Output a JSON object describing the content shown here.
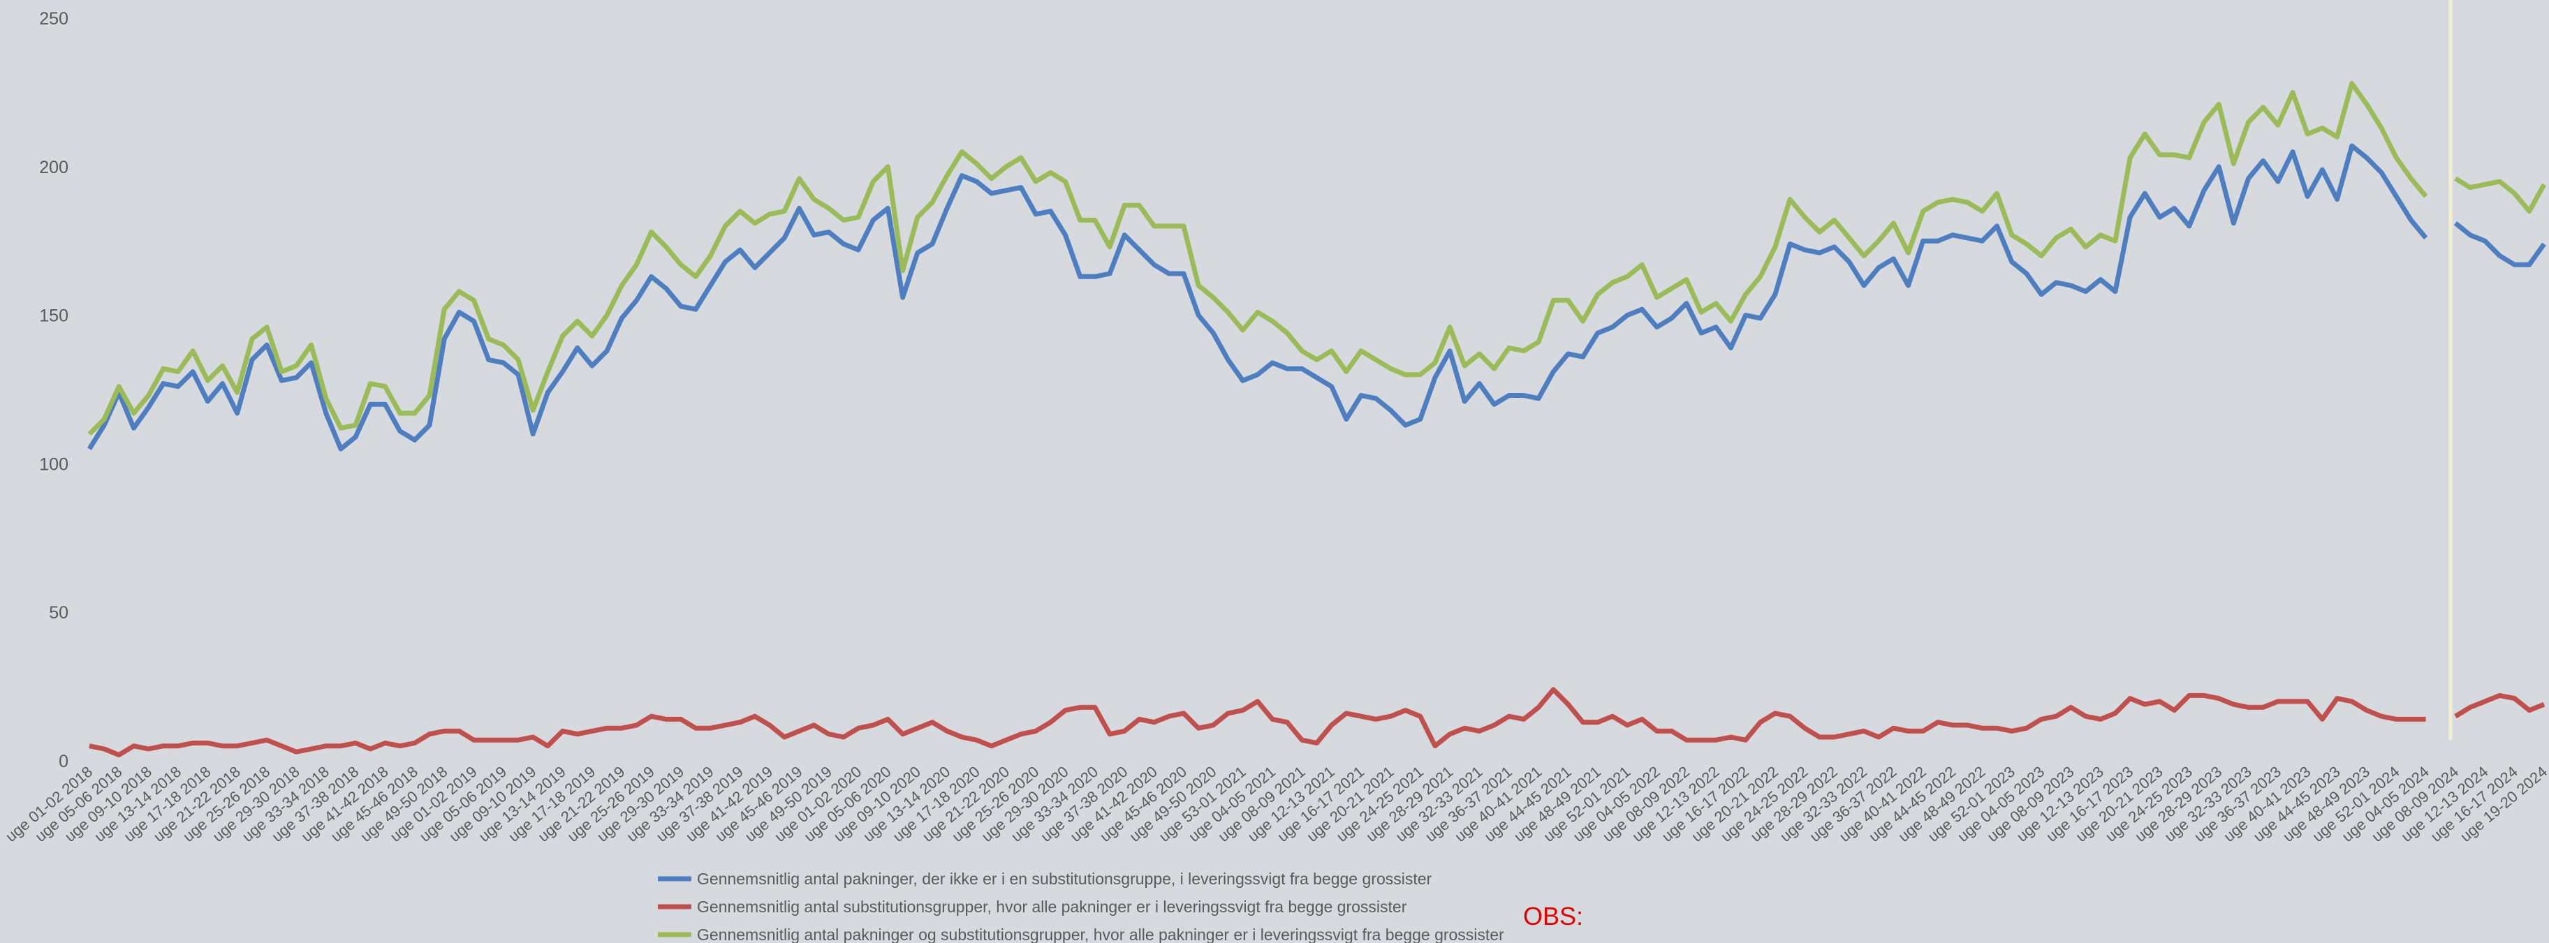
{
  "chart_data": {
    "type": "line",
    "categories": [
      "uge 01-02 2018",
      null,
      "uge 05-06 2018",
      null,
      "uge 09-10 2018",
      null,
      "uge 13-14 2018",
      null,
      "uge 17-18 2018",
      null,
      "uge 21-22 2018",
      null,
      "uge 25-26 2018",
      null,
      "uge 29-30 2018",
      null,
      "uge 33-34 2018",
      null,
      "uge 37-38 2018",
      null,
      "uge 41-42 2018",
      null,
      "uge 45-46 2018",
      null,
      "uge 49-50 2018",
      null,
      "uge 01-02 2019",
      null,
      "uge 05-06 2019",
      null,
      "uge 09-10 2019",
      null,
      "uge 13-14 2019",
      null,
      "uge 17-18 2019",
      null,
      "uge 21-22 2019",
      null,
      "uge 25-26 2019",
      null,
      "uge 29-30 2019",
      null,
      "uge 33-34 2019",
      null,
      "uge 37-38 2019",
      null,
      "uge 41-42 2019",
      null,
      "uge 45-46 2019",
      null,
      "uge 49-50 2019",
      null,
      "uge 01-02 2020",
      null,
      "uge 05-06 2020",
      null,
      "uge 09-10 2020",
      null,
      "uge 13-14 2020",
      null,
      "uge 17-18 2020",
      null,
      "uge 21-22 2020",
      null,
      "uge 25-26 2020",
      null,
      "uge 29-30 2020",
      null,
      "uge 33-34 2020",
      null,
      "uge 37-38 2020",
      null,
      "uge 41-42 2020",
      null,
      "uge 45-46 2020",
      null,
      "uge 49-50 2020",
      null,
      "uge 53-01 2021",
      null,
      "uge 04-05 2021",
      null,
      "uge 08-09 2021",
      null,
      "uge 12-13 2021",
      null,
      "uge 16-17 2021",
      null,
      "uge 20-21 2021",
      null,
      "uge 24-25 2021",
      null,
      "uge 28-29 2021",
      null,
      "uge 32-33 2021",
      null,
      "uge 36-37 2021",
      null,
      "uge 40-41 2021",
      null,
      "uge 44-45 2021",
      null,
      "uge 48-49 2021",
      null,
      "uge 52-01 2021",
      null,
      "uge 04-05 2022",
      null,
      "uge 08-09 2022",
      null,
      "uge 12-13 2022",
      null,
      "uge 16-17 2022",
      null,
      "uge 20-21 2022",
      null,
      "uge 24-25 2022",
      null,
      "uge 28-29 2022",
      null,
      "uge 32-33 2022",
      null,
      "uge 36-37 2022",
      null,
      "uge 40-41 2022",
      null,
      "uge 44-45 2022",
      null,
      "uge 48-49 2022",
      null,
      "uge 52-01 2023",
      null,
      "uge 04-05 2023",
      null,
      "uge 08-09 2023",
      null,
      "uge 12-13 2023",
      null,
      "uge 16-17 2023",
      null,
      "uge 20-21 2023",
      null,
      "uge 24-25 2023",
      null,
      "uge 28-29 2023",
      null,
      "uge 32-33 2023",
      null,
      "uge 36-37 2023",
      null,
      "uge 40-41 2023",
      null,
      "uge 44-45 2023",
      null,
      "uge 48-49 2023",
      null,
      "uge 52-01 2024",
      null,
      "uge 04-05 2024",
      null,
      "uge 08-09 2024",
      null,
      "uge 12-13 2024",
      null,
      "uge 16-17 2024",
      null,
      "uge 19-20 2024"
    ],
    "series": [
      {
        "name": "Gennemsnitlig antal pakninger, der ikke er i en substitutionsgruppe, i leveringssvigt fra begge grossister",
        "color": "#4f7ec0",
        "values": [
          105,
          113,
          124,
          112,
          119,
          127,
          126,
          131,
          121,
          127,
          117,
          135,
          140,
          128,
          129,
          134,
          117,
          105,
          109,
          120,
          120,
          111,
          108,
          113,
          142,
          151,
          148,
          135,
          134,
          130,
          110,
          124,
          131,
          139,
          133,
          138,
          149,
          155,
          163,
          159,
          153,
          152,
          160,
          168,
          172,
          166,
          171,
          176,
          186,
          177,
          178,
          174,
          172,
          182,
          186,
          156,
          171,
          174,
          186,
          197,
          195,
          191,
          192,
          193,
          184,
          185,
          177,
          163,
          163,
          164,
          177,
          172,
          167,
          164,
          164,
          150,
          144,
          135,
          128,
          130,
          134,
          132,
          132,
          129,
          126,
          115,
          123,
          122,
          118,
          113,
          115,
          129,
          138,
          121,
          127,
          120,
          123,
          123,
          122,
          131,
          137,
          136,
          144,
          146,
          150,
          152,
          146,
          149,
          154,
          144,
          146,
          139,
          150,
          149,
          157,
          174,
          172,
          171,
          173,
          168,
          160,
          166,
          169,
          160,
          175,
          175,
          177,
          176,
          175,
          180,
          168,
          164,
          157,
          161,
          160,
          158,
          162,
          158,
          183,
          191,
          183,
          186,
          180,
          192,
          200,
          181,
          196,
          202,
          195,
          205,
          190,
          199,
          189,
          207,
          203,
          198,
          190,
          182,
          176,
          null,
          181,
          177,
          175,
          170,
          167,
          167,
          174
        ]
      },
      {
        "name": "Gennemsnitlig antal substitutionsgrupper, hvor alle pakninger er i leveringssvigt fra begge grossister",
        "color": "#c0504d",
        "values": [
          5,
          4,
          2,
          5,
          4,
          5,
          5,
          6,
          6,
          5,
          5,
          6,
          7,
          5,
          3,
          4,
          5,
          5,
          6,
          4,
          6,
          5,
          6,
          9,
          10,
          10,
          7,
          7,
          7,
          7,
          8,
          5,
          10,
          9,
          10,
          11,
          11,
          12,
          15,
          14,
          14,
          11,
          11,
          12,
          13,
          15,
          12,
          8,
          10,
          12,
          9,
          8,
          11,
          12,
          14,
          9,
          11,
          13,
          10,
          8,
          7,
          5,
          7,
          9,
          10,
          13,
          17,
          18,
          18,
          9,
          10,
          14,
          13,
          15,
          16,
          11,
          12,
          16,
          17,
          20,
          14,
          13,
          7,
          6,
          12,
          16,
          15,
          14,
          15,
          17,
          15,
          5,
          9,
          11,
          10,
          12,
          15,
          14,
          18,
          24,
          19,
          13,
          13,
          15,
          12,
          14,
          10,
          10,
          7,
          7,
          7,
          8,
          7,
          13,
          16,
          15,
          11,
          8,
          8,
          9,
          10,
          8,
          11,
          10,
          10,
          13,
          12,
          12,
          11,
          11,
          10,
          11,
          14,
          15,
          18,
          15,
          14,
          16,
          21,
          19,
          20,
          17,
          22,
          22,
          21,
          19,
          18,
          18,
          20,
          20,
          20,
          14,
          21,
          20,
          17,
          15,
          14,
          14,
          14,
          null,
          15,
          18,
          20,
          22,
          21,
          17,
          19
        ]
      },
      {
        "name": "Gennemsnitlig antal pakninger og substitutionsgrupper,  hvor alle pakninger er i leveringssvigt fra begge grossister",
        "color": "#9bbb59",
        "values": [
          110,
          115,
          126,
          117,
          123,
          132,
          131,
          138,
          128,
          133,
          124,
          142,
          146,
          131,
          133,
          140,
          122,
          112,
          113,
          127,
          126,
          117,
          117,
          123,
          152,
          158,
          155,
          142,
          140,
          135,
          118,
          131,
          143,
          148,
          143,
          150,
          160,
          167,
          178,
          173,
          167,
          163,
          170,
          180,
          185,
          181,
          184,
          185,
          196,
          189,
          186,
          182,
          183,
          195,
          200,
          165,
          183,
          188,
          197,
          205,
          201,
          196,
          200,
          203,
          195,
          198,
          195,
          182,
          182,
          173,
          187,
          187,
          180,
          180,
          180,
          160,
          156,
          151,
          145,
          151,
          148,
          144,
          138,
          135,
          138,
          131,
          138,
          135,
          132,
          130,
          130,
          134,
          146,
          133,
          137,
          132,
          139,
          138,
          141,
          155,
          155,
          148,
          157,
          161,
          163,
          167,
          156,
          159,
          162,
          151,
          154,
          148,
          157,
          163,
          173,
          189,
          183,
          178,
          182,
          176,
          170,
          175,
          181,
          171,
          185,
          188,
          189,
          188,
          185,
          191,
          177,
          174,
          170,
          176,
          179,
          173,
          177,
          175,
          203,
          211,
          204,
          204,
          203,
          215,
          221,
          201,
          215,
          220,
          214,
          225,
          211,
          213,
          210,
          228,
          221,
          213,
          203,
          196,
          190,
          null,
          196,
          193,
          194,
          195,
          191,
          185,
          194
        ]
      }
    ],
    "ylim": [
      0,
      250
    ],
    "yticks": [
      0,
      50,
      100,
      150,
      200,
      250
    ],
    "annotation": "OBS:"
  }
}
